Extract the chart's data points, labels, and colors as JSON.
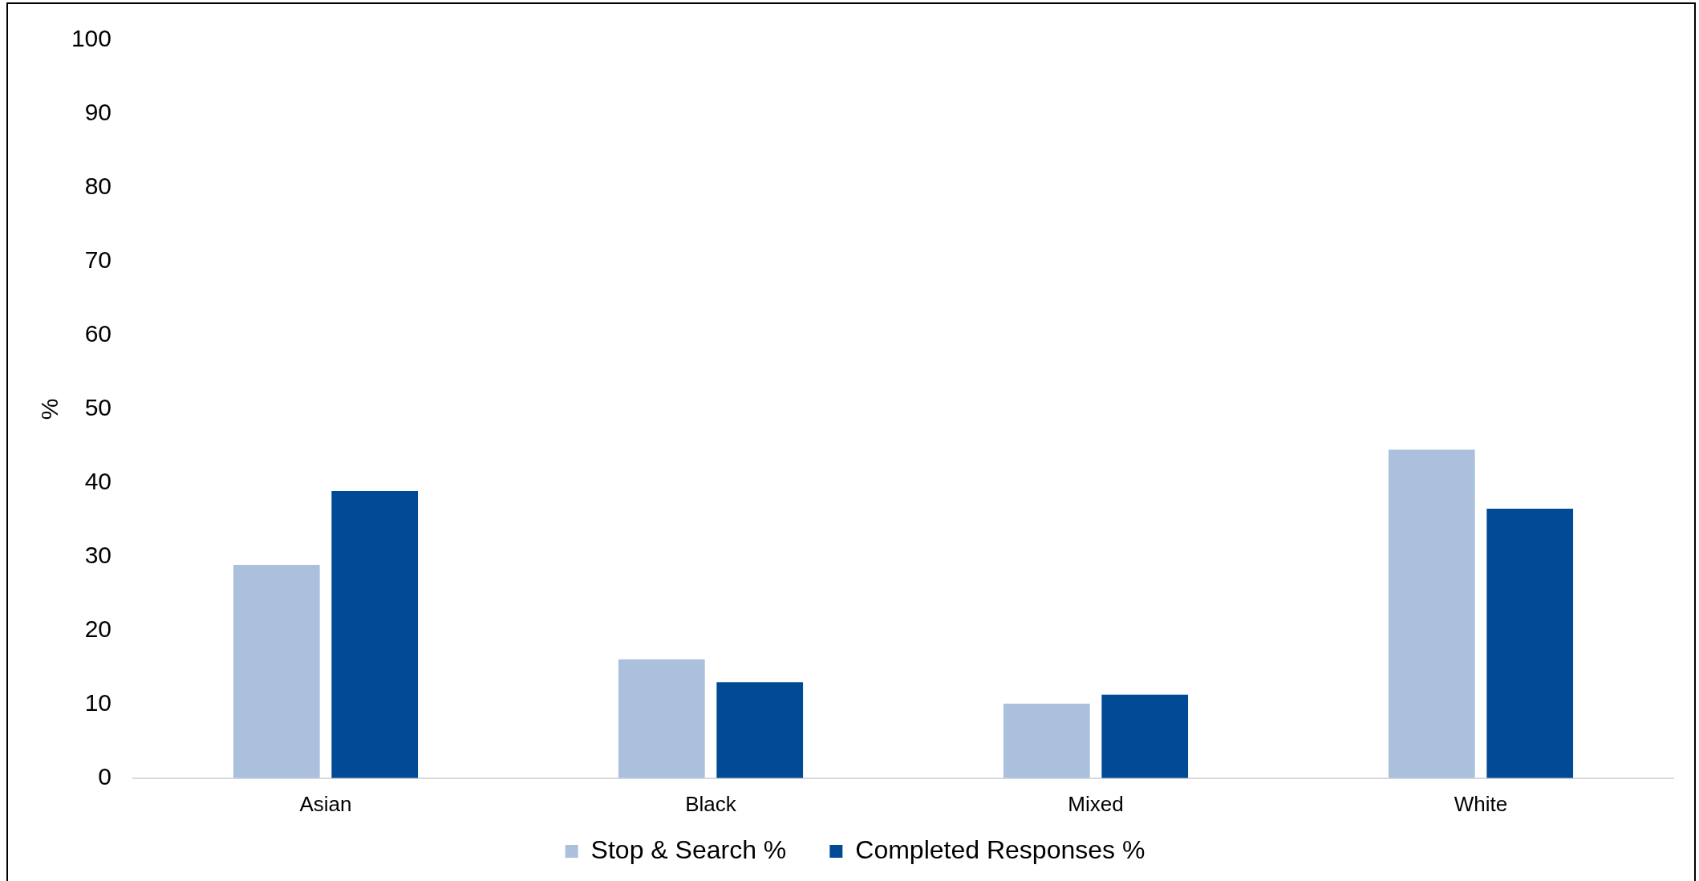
{
  "chart_data": {
    "type": "bar",
    "ylabel": "%",
    "categories": [
      "Asian",
      "Black",
      "Mixed",
      "White"
    ],
    "series": [
      {
        "name": "Stop & Search %",
        "color": "#aac0dc",
        "values": [
          28.9,
          16.1,
          10.1,
          44.5
        ]
      },
      {
        "name": "Completed Responses %",
        "color": "#004a96",
        "values": [
          38.9,
          13.0,
          11.3,
          36.5
        ]
      }
    ],
    "ylim": [
      0,
      100
    ],
    "yticks": [
      0,
      10,
      20,
      30,
      40,
      50,
      60,
      70,
      80,
      90,
      100
    ],
    "legend": "bottom"
  }
}
